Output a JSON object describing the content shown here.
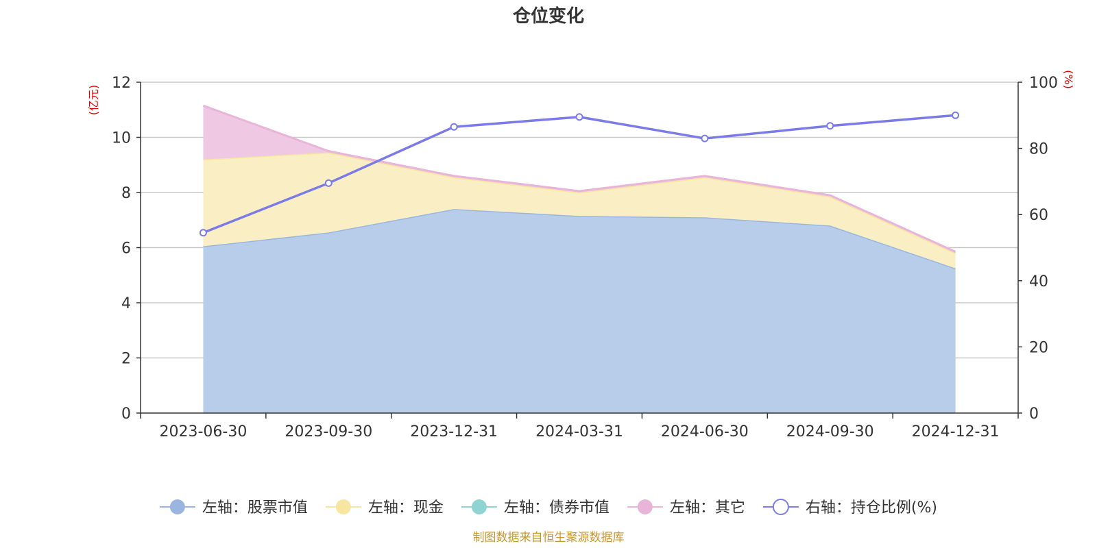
{
  "chart_data": {
    "type": "area",
    "title": "仓位变化",
    "categories": [
      "2023-06-30",
      "2023-09-30",
      "2023-12-31",
      "2024-03-31",
      "2024-06-30",
      "2024-09-30",
      "2024-12-31"
    ],
    "left_axis": {
      "unit": "(亿元)",
      "min": 0,
      "max": 12,
      "ticks": [
        0,
        2,
        4,
        6,
        8,
        10,
        12
      ]
    },
    "right_axis": {
      "unit": "(%)",
      "min": 0,
      "max": 100,
      "ticks": [
        0,
        20,
        40,
        60,
        80,
        100
      ]
    },
    "series": [
      {
        "name": "左轴：股票市值",
        "axis": "left",
        "kind": "area",
        "color": "#9ab6e0",
        "fill": "#b8cdea",
        "values": [
          6.05,
          6.55,
          7.4,
          7.15,
          7.1,
          6.8,
          5.25
        ]
      },
      {
        "name": "左轴：现金",
        "axis": "left",
        "kind": "area",
        "color": "#f6e6a0",
        "fill": "#faefc4",
        "values": [
          3.15,
          2.9,
          1.15,
          0.85,
          1.45,
          1.05,
          0.55
        ]
      },
      {
        "name": "左轴：债券市值",
        "axis": "left",
        "kind": "area",
        "color": "#8fd3d3",
        "fill": "#c0e8e8",
        "values": [
          0,
          0,
          0,
          0,
          0,
          0,
          0
        ]
      },
      {
        "name": "左轴：其它",
        "axis": "left",
        "kind": "area",
        "color": "#e8b4d8",
        "fill": "#efc9e3",
        "values": [
          1.95,
          0.05,
          0.05,
          0.05,
          0.05,
          0.05,
          0.05
        ]
      },
      {
        "name": "右轴：持仓比例(%)",
        "axis": "right",
        "kind": "line",
        "color": "#7b7be8",
        "values": [
          54.5,
          69.5,
          86.5,
          89.5,
          83.0,
          86.8,
          90.0
        ]
      }
    ],
    "legend_position": "bottom",
    "grid": true
  },
  "source_note": "制图数据来自恒生聚源数据库"
}
